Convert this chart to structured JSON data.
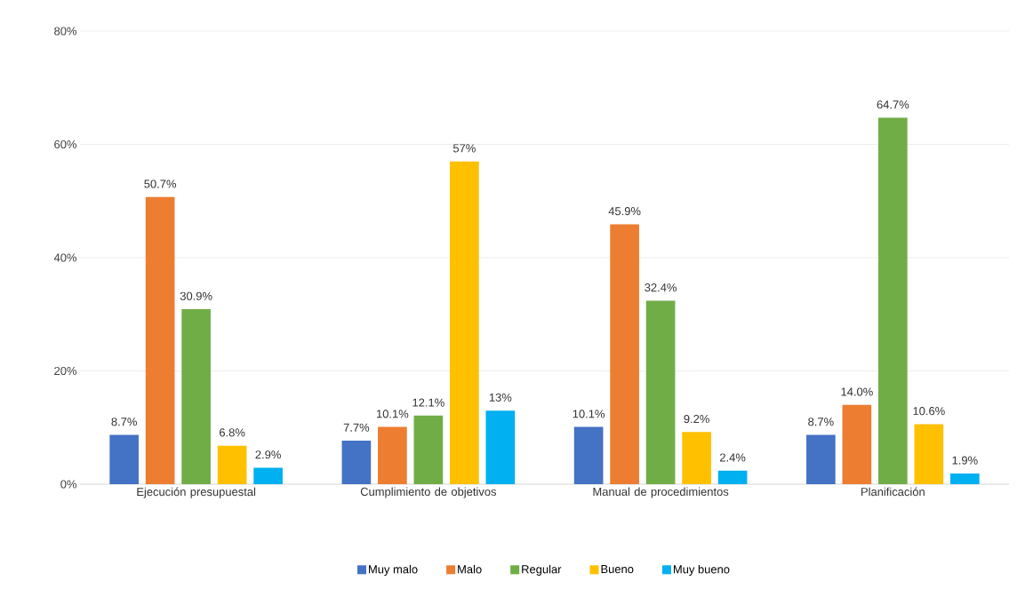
{
  "chart_data": {
    "type": "bar",
    "categories": [
      "Ejecución presupuestal",
      "Cumplimiento de objetivos",
      "Manual de procedimientos",
      "Planificación"
    ],
    "series": [
      {
        "name": "Muy malo",
        "color": "#4472c4",
        "values": [
          8.7,
          7.7,
          10.1,
          8.7
        ],
        "value_labels": [
          "8.7%",
          "7.7%",
          "10.1%",
          "8.7%"
        ]
      },
      {
        "name": "Malo",
        "color": "#ed7d31",
        "values": [
          50.7,
          10.1,
          45.9,
          14.0
        ],
        "value_labels": [
          "50.7%",
          "10.1%",
          "45.9%",
          "14.0%"
        ]
      },
      {
        "name": "Regular",
        "color": "#70ad47",
        "values": [
          30.9,
          12.1,
          32.4,
          64.7
        ],
        "value_labels": [
          "30.9%",
          "12.1%",
          "32.4%",
          "64.7%"
        ]
      },
      {
        "name": "Bueno",
        "color": "#ffc000",
        "values": [
          6.8,
          57,
          9.2,
          10.6
        ],
        "value_labels": [
          "6.8%",
          "57%",
          "9.2%",
          "10.6%"
        ]
      },
      {
        "name": "Muy bueno",
        "color": "#00b0f0",
        "values": [
          2.9,
          13,
          2.4,
          1.9
        ],
        "value_labels": [
          "2.9%",
          "13%",
          "2.4%",
          "1.9%"
        ]
      }
    ],
    "ylim": [
      0,
      80
    ],
    "yticks": [
      {
        "value": 0,
        "label": "0%"
      },
      {
        "value": 20,
        "label": "20%"
      },
      {
        "value": 40,
        "label": "40%"
      },
      {
        "value": 60,
        "label": "60%"
      },
      {
        "value": 80,
        "label": "80%"
      }
    ],
    "grid": "y",
    "legend": "bottom"
  }
}
